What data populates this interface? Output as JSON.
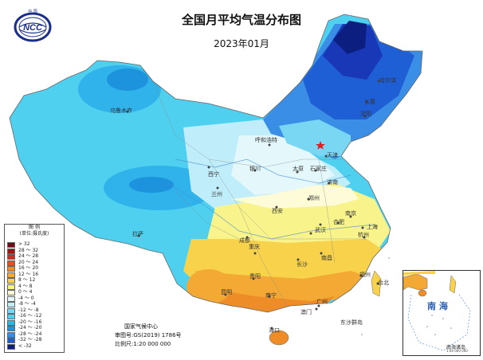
{
  "title": "全国月平均气温分布图",
  "subtitle": "2023年01月",
  "logo": {
    "seal_text": "中 国"
  },
  "legend": {
    "title": "图  例",
    "unit": "(单位:摄氏度)",
    "items": [
      {
        "label": "> 32",
        "color": "#6b0f1a"
      },
      {
        "label": "28 ～ 32",
        "color": "#9e1612"
      },
      {
        "label": "24 ～ 28",
        "color": "#c8301d"
      },
      {
        "label": "20 ～ 24",
        "color": "#e34f28"
      },
      {
        "label": "16 ～ 20",
        "color": "#ee8c28"
      },
      {
        "label": "12 ～ 16",
        "color": "#f3a933"
      },
      {
        "label": "8 ～ 12",
        "color": "#f7d24a"
      },
      {
        "label": "4 ～ 8",
        "color": "#f8f38a"
      },
      {
        "label": "0 ～ 4",
        "color": "#fdfbd8"
      },
      {
        "label": "-4 ～ 0",
        "color": "#e4f8fb"
      },
      {
        "label": "-8 ～ -4",
        "color": "#bfeefa"
      },
      {
        "label": "-12 ～ -8",
        "color": "#7ad7f4"
      },
      {
        "label": "-16 ～ -12",
        "color": "#4fd0ef"
      },
      {
        "label": "-20 ～ -16",
        "color": "#2fb3ea"
      },
      {
        "label": "-24 ～ -20",
        "color": "#1d92dd"
      },
      {
        "label": "-28 ～ -24",
        "color": "#3a8ee6"
      },
      {
        "label": "-32 ～ -28",
        "color": "#1f5fd6"
      },
      {
        "label": "< -32",
        "color": "#0c1f80"
      }
    ]
  },
  "cities": [
    "乌鲁木齐",
    "西宁",
    "银川",
    "兰州",
    "呼和浩特",
    "太原",
    "石家庄",
    "天津",
    "济南",
    "郑州",
    "西安",
    "南京",
    "合肥",
    "武汉",
    "上海",
    "杭州",
    "成都",
    "重庆",
    "长沙",
    "南昌",
    "福州",
    "贵阳",
    "昆明",
    "南宁",
    "广州",
    "澳门",
    "海口",
    "拉萨",
    "沈阳",
    "哈尔滨",
    "长春",
    "台北",
    "东沙群岛"
  ],
  "credit": {
    "agency": "国家气候中心",
    "approval": "审图号:GS(2019) 1786号",
    "scale": "比例尺:1:20 000 000"
  },
  "inset": {
    "sea_label": "南 海",
    "caption": "南海诸岛",
    "scale": "1:40 000 000"
  }
}
